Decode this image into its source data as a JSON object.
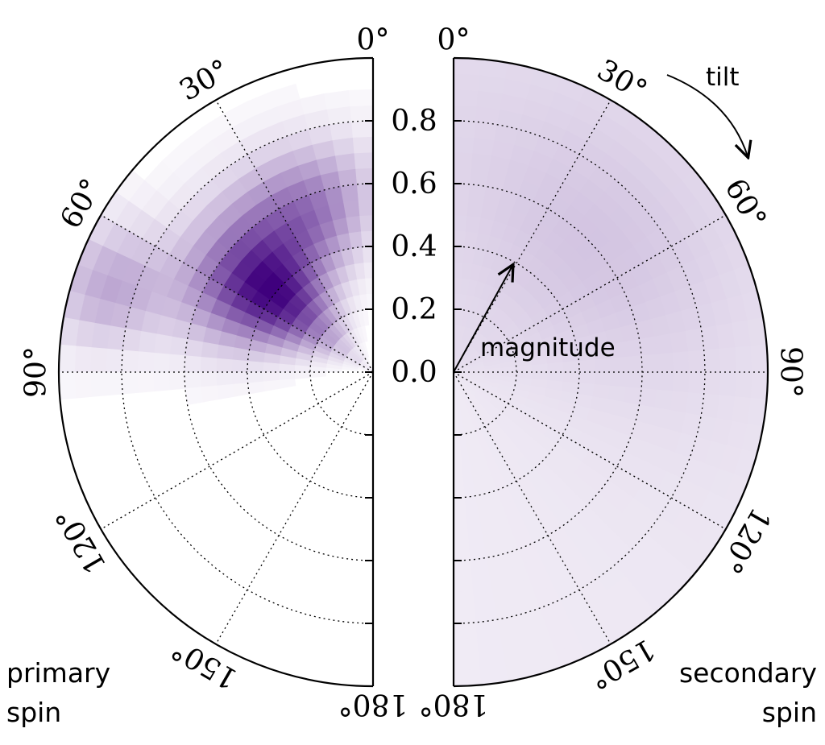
{
  "chart_data": {
    "type": "heatmap",
    "title": "",
    "subtitle": "",
    "projection": "half-polar (spin disk plot)",
    "radial_axis": {
      "label": "magnitude",
      "range": [
        0,
        1
      ],
      "tick_values": [
        0.0,
        0.2,
        0.4,
        0.6,
        0.8,
        1.0
      ],
      "tick_labels": [
        "0.0",
        "0.2",
        "0.4",
        "0.6",
        "0.8",
        ""
      ]
    },
    "angular_axis": {
      "label": "tilt",
      "range_deg": [
        0,
        180
      ],
      "tick_values_deg": [
        0,
        30,
        60,
        90,
        120,
        150,
        180
      ],
      "tick_labels": [
        "0°",
        "30°",
        "60°",
        "90°",
        "120°",
        "150°",
        "180°"
      ]
    },
    "grid": true,
    "colormap": "Purples",
    "colors": {
      "low": "#fcfbfd",
      "high": "#3f007d",
      "grid": "#000000"
    },
    "bins": {
      "magnitude_step": 0.05,
      "tilt_step_deg": 5
    },
    "panels": [
      {
        "name": "primary spin",
        "label_lines": [
          "primary",
          "spin"
        ],
        "side": "left",
        "peak": {
          "magnitude": 0.42,
          "tilt_deg": 52
        },
        "peak_density": 1.0
      },
      {
        "name": "secondary spin",
        "label_lines": [
          "secondary",
          "spin"
        ],
        "side": "right",
        "peak": {
          "magnitude": 0.6,
          "tilt_deg": 50
        },
        "peak_density": 0.2
      }
    ]
  },
  "labels": {
    "magnitude": "magnitude",
    "tilt": "tilt",
    "primary_line1": "primary",
    "primary_line2": "spin",
    "secondary_line1": "secondary",
    "secondary_line2": "spin"
  }
}
